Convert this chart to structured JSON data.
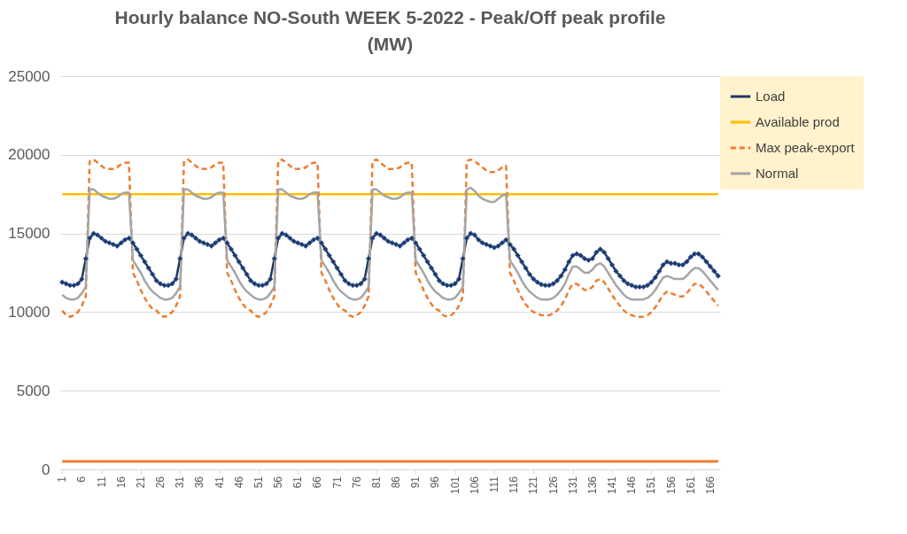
{
  "chart_data": {
    "type": "line",
    "title": "Hourly balance NO-South WEEK 5-2022 - Peak/Off peak profile (MW)",
    "x": [
      1,
      2,
      3,
      4,
      5,
      6,
      7,
      8,
      9,
      10,
      11,
      12,
      13,
      14,
      15,
      16,
      17,
      18,
      19,
      20,
      21,
      22,
      23,
      24,
      25,
      26,
      27,
      28,
      29,
      30,
      31,
      32,
      33,
      34,
      35,
      36,
      37,
      38,
      39,
      40,
      41,
      42,
      43,
      44,
      45,
      46,
      47,
      48,
      49,
      50,
      51,
      52,
      53,
      54,
      55,
      56,
      57,
      58,
      59,
      60,
      61,
      62,
      63,
      64,
      65,
      66,
      67,
      68,
      69,
      70,
      71,
      72,
      73,
      74,
      75,
      76,
      77,
      78,
      79,
      80,
      81,
      82,
      83,
      84,
      85,
      86,
      87,
      88,
      89,
      90,
      91,
      92,
      93,
      94,
      95,
      96,
      97,
      98,
      99,
      100,
      101,
      102,
      103,
      104,
      105,
      106,
      107,
      108,
      109,
      110,
      111,
      112,
      113,
      114,
      115,
      116,
      117,
      118,
      119,
      120,
      121,
      122,
      123,
      124,
      125,
      126,
      127,
      128,
      129,
      130,
      131,
      132,
      133,
      134,
      135,
      136,
      137,
      138,
      139,
      140,
      141,
      142,
      143,
      144,
      145,
      146,
      147,
      148,
      149,
      150,
      151,
      152,
      153,
      154,
      155,
      156,
      157,
      158,
      159,
      160,
      161,
      162,
      163,
      164,
      165,
      166,
      167,
      168
    ],
    "xlim": [
      0.5,
      168.5
    ],
    "xticks": [
      1,
      6,
      11,
      16,
      21,
      26,
      31,
      36,
      41,
      46,
      51,
      56,
      61,
      66,
      71,
      76,
      81,
      86,
      91,
      96,
      101,
      106,
      111,
      116,
      121,
      126,
      131,
      136,
      141,
      146,
      151,
      156,
      161,
      166
    ],
    "ylim": [
      0,
      25000
    ],
    "yticks": [
      0,
      5000,
      10000,
      15000,
      20000,
      25000
    ],
    "grid": "y",
    "legend": "top right",
    "marker": "none",
    "series": [
      {
        "name": "Load",
        "color": "#1f3864",
        "marker": "diamond",
        "values": [
          11900,
          11800,
          11700,
          11700,
          11800,
          12100,
          13400,
          14700,
          15000,
          14900,
          14700,
          14500,
          14400,
          14300,
          14200,
          14400,
          14600,
          14700,
          14400,
          14000,
          13600,
          13200,
          12800,
          12400,
          12000,
          11800,
          11700,
          11700,
          11800,
          12100,
          13400,
          14700,
          15000,
          14900,
          14700,
          14500,
          14400,
          14300,
          14200,
          14400,
          14600,
          14700,
          14400,
          14000,
          13600,
          13200,
          12800,
          12400,
          12000,
          11800,
          11700,
          11700,
          11800,
          12100,
          13400,
          14700,
          15000,
          14900,
          14700,
          14500,
          14400,
          14300,
          14200,
          14400,
          14600,
          14700,
          14400,
          14000,
          13600,
          13200,
          12800,
          12400,
          12000,
          11800,
          11700,
          11700,
          11800,
          12100,
          13400,
          14700,
          15000,
          14900,
          14700,
          14500,
          14400,
          14300,
          14200,
          14400,
          14600,
          14700,
          14400,
          14000,
          13600,
          13200,
          12800,
          12400,
          12000,
          11800,
          11700,
          11700,
          11800,
          12100,
          13400,
          14700,
          15000,
          14900,
          14600,
          14400,
          14300,
          14200,
          14100,
          14200,
          14400,
          14600,
          14300,
          14000,
          13600,
          13200,
          12800,
          12400,
          12100,
          11900,
          11750,
          11700,
          11700,
          11800,
          12000,
          12300,
          12700,
          13200,
          13600,
          13700,
          13600,
          13400,
          13300,
          13400,
          13800,
          14000,
          13800,
          13400,
          13000,
          12600,
          12300,
          12000,
          11800,
          11700,
          11600,
          11600,
          11600,
          11700,
          11900,
          12200,
          12600,
          13000,
          13200,
          13100,
          13100,
          13000,
          13000,
          13200,
          13500,
          13700,
          13700,
          13500,
          13200,
          12900,
          12600,
          12300
        ]
      },
      {
        "name": "Available prod",
        "color": "#ffc000",
        "values": [
          17500,
          17500,
          17500,
          17500,
          17500,
          17500,
          17500,
          17500,
          17500,
          17500,
          17500,
          17500,
          17500,
          17500,
          17500,
          17500,
          17500,
          17500,
          17500,
          17500,
          17500,
          17500,
          17500,
          17500,
          17500,
          17500,
          17500,
          17500,
          17500,
          17500,
          17500,
          17500,
          17500,
          17500,
          17500,
          17500,
          17500,
          17500,
          17500,
          17500,
          17500,
          17500,
          17500,
          17500,
          17500,
          17500,
          17500,
          17500,
          17500,
          17500,
          17500,
          17500,
          17500,
          17500,
          17500,
          17500,
          17500,
          17500,
          17500,
          17500,
          17500,
          17500,
          17500,
          17500,
          17500,
          17500,
          17500,
          17500,
          17500,
          17500,
          17500,
          17500,
          17500,
          17500,
          17500,
          17500,
          17500,
          17500,
          17500,
          17500,
          17500,
          17500,
          17500,
          17500,
          17500,
          17500,
          17500,
          17500,
          17500,
          17500,
          17500,
          17500,
          17500,
          17500,
          17500,
          17500,
          17500,
          17500,
          17500,
          17500,
          17500,
          17500,
          17500,
          17500,
          17500,
          17500,
          17500,
          17500,
          17500,
          17500,
          17500,
          17500,
          17500,
          17500,
          17500,
          17500,
          17500,
          17500,
          17500,
          17500,
          17500,
          17500,
          17500,
          17500,
          17500,
          17500,
          17500,
          17500,
          17500,
          17500,
          17500,
          17500,
          17500,
          17500,
          17500,
          17500,
          17500,
          17500,
          17500,
          17500,
          17500,
          17500,
          17500,
          17500,
          17500,
          17500,
          17500,
          17500,
          17500,
          17500,
          17500,
          17500,
          17500,
          17500,
          17500,
          17500,
          17500,
          17500,
          17500,
          17500,
          17500,
          17500,
          17500,
          17500,
          17500,
          17500,
          17500,
          17500
        ]
      },
      {
        "name": "Max peak-export",
        "color": "#ed7d31",
        "line_style": "dashed",
        "values": [
          10100,
          9800,
          9700,
          9800,
          10000,
          10400,
          11000,
          19600,
          19700,
          19500,
          19300,
          19100,
          19100,
          19100,
          19200,
          19400,
          19500,
          19500,
          12500,
          12000,
          11400,
          10900,
          10500,
          10200,
          10100,
          9800,
          9700,
          9800,
          10000,
          10400,
          11000,
          19600,
          19700,
          19500,
          19300,
          19100,
          19100,
          19100,
          19200,
          19400,
          19500,
          19500,
          12500,
          12000,
          11400,
          10900,
          10500,
          10200,
          10100,
          9800,
          9700,
          9800,
          10000,
          10400,
          11000,
          19600,
          19700,
          19500,
          19300,
          19100,
          19100,
          19100,
          19200,
          19400,
          19500,
          19500,
          12500,
          12000,
          11400,
          10900,
          10500,
          10200,
          10100,
          9800,
          9700,
          9800,
          10000,
          10400,
          11000,
          19600,
          19700,
          19500,
          19300,
          19100,
          19100,
          19100,
          19200,
          19400,
          19500,
          19500,
          12500,
          12000,
          11400,
          10900,
          10500,
          10200,
          10100,
          9800,
          9700,
          9800,
          10000,
          10400,
          11000,
          19600,
          19700,
          19600,
          19400,
          19200,
          19000,
          18900,
          18900,
          19000,
          19200,
          19300,
          12500,
          12000,
          11400,
          10900,
          10500,
          10200,
          10000,
          9900,
          9800,
          9800,
          9800,
          9900,
          10100,
          10400,
          10800,
          11400,
          11800,
          11800,
          11600,
          11400,
          11400,
          11600,
          12000,
          12100,
          11900,
          11500,
          11100,
          10700,
          10400,
          10100,
          9900,
          9800,
          9700,
          9700,
          9700,
          9800,
          10000,
          10300,
          10700,
          11100,
          11300,
          11200,
          11100,
          11000,
          11000,
          11200,
          11500,
          11800,
          11800,
          11600,
          11300,
          11000,
          10700,
          10400
        ]
      },
      {
        "name": "Normal",
        "color": "#a5a5a5",
        "values": [
          11100,
          10900,
          10800,
          10800,
          10900,
          11200,
          11600,
          17800,
          17800,
          17600,
          17400,
          17300,
          17200,
          17200,
          17300,
          17500,
          17600,
          17600,
          13300,
          12900,
          12500,
          12000,
          11600,
          11300,
          11100,
          10900,
          10800,
          10800,
          10900,
          11200,
          11600,
          17800,
          17800,
          17600,
          17400,
          17300,
          17200,
          17200,
          17300,
          17500,
          17600,
          17600,
          13300,
          12900,
          12500,
          12000,
          11600,
          11300,
          11100,
          10900,
          10800,
          10800,
          10900,
          11200,
          11600,
          17800,
          17800,
          17600,
          17400,
          17300,
          17200,
          17200,
          17300,
          17500,
          17600,
          17600,
          13300,
          12900,
          12500,
          12000,
          11600,
          11300,
          11100,
          10900,
          10800,
          10800,
          10900,
          11200,
          11600,
          17800,
          17800,
          17600,
          17400,
          17300,
          17200,
          17200,
          17300,
          17500,
          17600,
          17600,
          13300,
          12900,
          12500,
          12000,
          11600,
          11300,
          11100,
          10900,
          10800,
          10800,
          10900,
          11200,
          11600,
          17800,
          17900,
          17700,
          17400,
          17200,
          17100,
          17000,
          17000,
          17200,
          17400,
          17500,
          13300,
          12900,
          12500,
          12000,
          11600,
          11300,
          11100,
          10900,
          10800,
          10800,
          10800,
          10900,
          11100,
          11400,
          11800,
          12400,
          12900,
          12900,
          12700,
          12500,
          12500,
          12700,
          13000,
          13100,
          12900,
          12500,
          12100,
          11700,
          11400,
          11100,
          10900,
          10800,
          10800,
          10800,
          10800,
          10900,
          11100,
          11400,
          11800,
          12200,
          12300,
          12200,
          12100,
          12100,
          12100,
          12300,
          12600,
          12800,
          12800,
          12600,
          12300,
          12000,
          11700,
          11400
        ]
      },
      {
        "color": "#ed7d31",
        "values": [
          500,
          500,
          500,
          500,
          500,
          500,
          500,
          500,
          500,
          500,
          500,
          500,
          500,
          500,
          500,
          500,
          500,
          500,
          500,
          500,
          500,
          500,
          500,
          500,
          500,
          500,
          500,
          500,
          500,
          500,
          500,
          500,
          500,
          500,
          500,
          500,
          500,
          500,
          500,
          500,
          500,
          500,
          500,
          500,
          500,
          500,
          500,
          500,
          500,
          500,
          500,
          500,
          500,
          500,
          500,
          500,
          500,
          500,
          500,
          500,
          500,
          500,
          500,
          500,
          500,
          500,
          500,
          500,
          500,
          500,
          500,
          500,
          500,
          500,
          500,
          500,
          500,
          500,
          500,
          500,
          500,
          500,
          500,
          500,
          500,
          500,
          500,
          500,
          500,
          500,
          500,
          500,
          500,
          500,
          500,
          500,
          500,
          500,
          500,
          500,
          500,
          500,
          500,
          500,
          500,
          500,
          500,
          500,
          500,
          500,
          500,
          500,
          500,
          500,
          500,
          500,
          500,
          500,
          500,
          500,
          500,
          500,
          500,
          500,
          500,
          500,
          500,
          500,
          500,
          500,
          500,
          500,
          500,
          500,
          500,
          500,
          500,
          500,
          500,
          500,
          500,
          500,
          500,
          500,
          500,
          500,
          500,
          500,
          500,
          500,
          500,
          500,
          500,
          500,
          500,
          500,
          500,
          500,
          500,
          500,
          500,
          500,
          500,
          500,
          500,
          500,
          500,
          500
        ]
      }
    ]
  }
}
